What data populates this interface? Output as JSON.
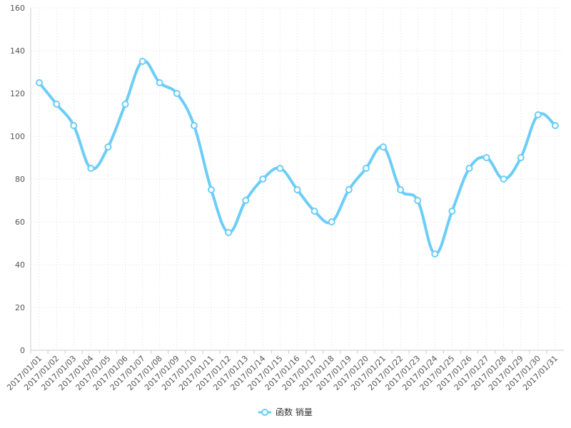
{
  "chart_data": {
    "type": "line",
    "categories": [
      "2017/01/01",
      "2017/01/02",
      "2017/01/03",
      "2017/01/04",
      "2017/01/05",
      "2017/01/06",
      "2017/01/07",
      "2017/01/08",
      "2017/01/09",
      "2017/01/10",
      "2017/01/11",
      "2017/01/12",
      "2017/01/13",
      "2017/01/14",
      "2017/01/15",
      "2017/01/16",
      "2017/01/17",
      "2017/01/18",
      "2017/01/19",
      "2017/01/20",
      "2017/01/21",
      "2017/01/22",
      "2017/01/23",
      "2017/01/24",
      "2017/01/25",
      "2017/01/26",
      "2017/01/27",
      "2017/01/28",
      "2017/01/29",
      "2017/01/30",
      "2017/01/31"
    ],
    "series": [
      {
        "name": "函数 销量",
        "color": "#6ccdf7",
        "values": [
          125,
          115,
          105,
          85,
          95,
          115,
          135,
          125,
          120,
          105,
          75,
          55,
          70,
          80,
          85,
          75,
          65,
          60,
          75,
          85,
          95,
          75,
          70,
          45,
          65,
          85,
          90,
          80,
          90,
          110,
          105
        ]
      }
    ],
    "ylim": [
      0,
      160
    ],
    "yticks": [
      0,
      20,
      40,
      60,
      80,
      100,
      120,
      140,
      160
    ],
    "grid": true,
    "legend": "bottom"
  }
}
